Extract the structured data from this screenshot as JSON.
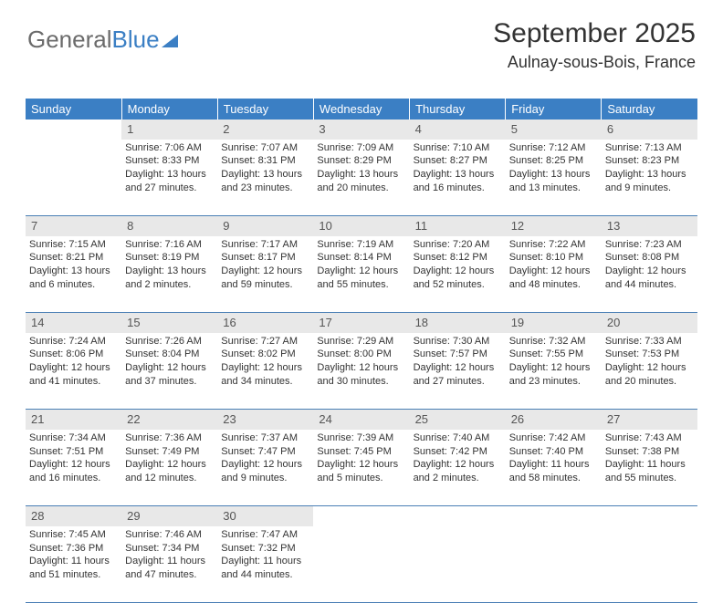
{
  "logo": {
    "text1": "General",
    "text2": "Blue"
  },
  "header": {
    "month": "September 2025",
    "location": "Aulnay-sous-Bois, France"
  },
  "styling": {
    "header_bg": "#3b7fc4",
    "header_text": "#ffffff",
    "daynum_bg": "#e8e8e8",
    "daynum_color": "#555555",
    "border_color": "#4a7fb5",
    "body_text": "#333333",
    "page_bg": "#ffffff",
    "logo_gray": "#6b6b6b",
    "logo_blue": "#3b7fc4",
    "month_fontsize": 30,
    "location_fontsize": 18,
    "dayheader_fontsize": 13,
    "cell_fontsize": 11
  },
  "weekdays": [
    "Sunday",
    "Monday",
    "Tuesday",
    "Wednesday",
    "Thursday",
    "Friday",
    "Saturday"
  ],
  "weeks": [
    {
      "nums": [
        "",
        "1",
        "2",
        "3",
        "4",
        "5",
        "6"
      ],
      "cells": [
        {
          "sunrise": "",
          "sunset": "",
          "daylight": ""
        },
        {
          "sunrise": "Sunrise: 7:06 AM",
          "sunset": "Sunset: 8:33 PM",
          "daylight": "Daylight: 13 hours and 27 minutes."
        },
        {
          "sunrise": "Sunrise: 7:07 AM",
          "sunset": "Sunset: 8:31 PM",
          "daylight": "Daylight: 13 hours and 23 minutes."
        },
        {
          "sunrise": "Sunrise: 7:09 AM",
          "sunset": "Sunset: 8:29 PM",
          "daylight": "Daylight: 13 hours and 20 minutes."
        },
        {
          "sunrise": "Sunrise: 7:10 AM",
          "sunset": "Sunset: 8:27 PM",
          "daylight": "Daylight: 13 hours and 16 minutes."
        },
        {
          "sunrise": "Sunrise: 7:12 AM",
          "sunset": "Sunset: 8:25 PM",
          "daylight": "Daylight: 13 hours and 13 minutes."
        },
        {
          "sunrise": "Sunrise: 7:13 AM",
          "sunset": "Sunset: 8:23 PM",
          "daylight": "Daylight: 13 hours and 9 minutes."
        }
      ]
    },
    {
      "nums": [
        "7",
        "8",
        "9",
        "10",
        "11",
        "12",
        "13"
      ],
      "cells": [
        {
          "sunrise": "Sunrise: 7:15 AM",
          "sunset": "Sunset: 8:21 PM",
          "daylight": "Daylight: 13 hours and 6 minutes."
        },
        {
          "sunrise": "Sunrise: 7:16 AM",
          "sunset": "Sunset: 8:19 PM",
          "daylight": "Daylight: 13 hours and 2 minutes."
        },
        {
          "sunrise": "Sunrise: 7:17 AM",
          "sunset": "Sunset: 8:17 PM",
          "daylight": "Daylight: 12 hours and 59 minutes."
        },
        {
          "sunrise": "Sunrise: 7:19 AM",
          "sunset": "Sunset: 8:14 PM",
          "daylight": "Daylight: 12 hours and 55 minutes."
        },
        {
          "sunrise": "Sunrise: 7:20 AM",
          "sunset": "Sunset: 8:12 PM",
          "daylight": "Daylight: 12 hours and 52 minutes."
        },
        {
          "sunrise": "Sunrise: 7:22 AM",
          "sunset": "Sunset: 8:10 PM",
          "daylight": "Daylight: 12 hours and 48 minutes."
        },
        {
          "sunrise": "Sunrise: 7:23 AM",
          "sunset": "Sunset: 8:08 PM",
          "daylight": "Daylight: 12 hours and 44 minutes."
        }
      ]
    },
    {
      "nums": [
        "14",
        "15",
        "16",
        "17",
        "18",
        "19",
        "20"
      ],
      "cells": [
        {
          "sunrise": "Sunrise: 7:24 AM",
          "sunset": "Sunset: 8:06 PM",
          "daylight": "Daylight: 12 hours and 41 minutes."
        },
        {
          "sunrise": "Sunrise: 7:26 AM",
          "sunset": "Sunset: 8:04 PM",
          "daylight": "Daylight: 12 hours and 37 minutes."
        },
        {
          "sunrise": "Sunrise: 7:27 AM",
          "sunset": "Sunset: 8:02 PM",
          "daylight": "Daylight: 12 hours and 34 minutes."
        },
        {
          "sunrise": "Sunrise: 7:29 AM",
          "sunset": "Sunset: 8:00 PM",
          "daylight": "Daylight: 12 hours and 30 minutes."
        },
        {
          "sunrise": "Sunrise: 7:30 AM",
          "sunset": "Sunset: 7:57 PM",
          "daylight": "Daylight: 12 hours and 27 minutes."
        },
        {
          "sunrise": "Sunrise: 7:32 AM",
          "sunset": "Sunset: 7:55 PM",
          "daylight": "Daylight: 12 hours and 23 minutes."
        },
        {
          "sunrise": "Sunrise: 7:33 AM",
          "sunset": "Sunset: 7:53 PM",
          "daylight": "Daylight: 12 hours and 20 minutes."
        }
      ]
    },
    {
      "nums": [
        "21",
        "22",
        "23",
        "24",
        "25",
        "26",
        "27"
      ],
      "cells": [
        {
          "sunrise": "Sunrise: 7:34 AM",
          "sunset": "Sunset: 7:51 PM",
          "daylight": "Daylight: 12 hours and 16 minutes."
        },
        {
          "sunrise": "Sunrise: 7:36 AM",
          "sunset": "Sunset: 7:49 PM",
          "daylight": "Daylight: 12 hours and 12 minutes."
        },
        {
          "sunrise": "Sunrise: 7:37 AM",
          "sunset": "Sunset: 7:47 PM",
          "daylight": "Daylight: 12 hours and 9 minutes."
        },
        {
          "sunrise": "Sunrise: 7:39 AM",
          "sunset": "Sunset: 7:45 PM",
          "daylight": "Daylight: 12 hours and 5 minutes."
        },
        {
          "sunrise": "Sunrise: 7:40 AM",
          "sunset": "Sunset: 7:42 PM",
          "daylight": "Daylight: 12 hours and 2 minutes."
        },
        {
          "sunrise": "Sunrise: 7:42 AM",
          "sunset": "Sunset: 7:40 PM",
          "daylight": "Daylight: 11 hours and 58 minutes."
        },
        {
          "sunrise": "Sunrise: 7:43 AM",
          "sunset": "Sunset: 7:38 PM",
          "daylight": "Daylight: 11 hours and 55 minutes."
        }
      ]
    },
    {
      "nums": [
        "28",
        "29",
        "30",
        "",
        "",
        "",
        ""
      ],
      "cells": [
        {
          "sunrise": "Sunrise: 7:45 AM",
          "sunset": "Sunset: 7:36 PM",
          "daylight": "Daylight: 11 hours and 51 minutes."
        },
        {
          "sunrise": "Sunrise: 7:46 AM",
          "sunset": "Sunset: 7:34 PM",
          "daylight": "Daylight: 11 hours and 47 minutes."
        },
        {
          "sunrise": "Sunrise: 7:47 AM",
          "sunset": "Sunset: 7:32 PM",
          "daylight": "Daylight: 11 hours and 44 minutes."
        },
        {
          "sunrise": "",
          "sunset": "",
          "daylight": ""
        },
        {
          "sunrise": "",
          "sunset": "",
          "daylight": ""
        },
        {
          "sunrise": "",
          "sunset": "",
          "daylight": ""
        },
        {
          "sunrise": "",
          "sunset": "",
          "daylight": ""
        }
      ]
    }
  ]
}
